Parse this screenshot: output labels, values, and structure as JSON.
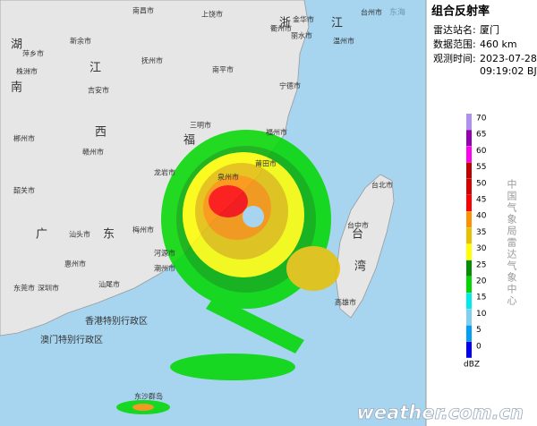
{
  "panel": {
    "title": "组合反射率",
    "station_label": "雷达站名:",
    "station": "厦门",
    "range_label": "数据范围:",
    "range": "460 km",
    "time_label": "观测时间:",
    "date": "2023-07-28",
    "time": "09:19:02 BJT",
    "unit": "dBZ",
    "agency": "中国气象局雷达气象中心"
  },
  "legend": {
    "levels": [
      {
        "value": 70,
        "color": "#ad90f0"
      },
      {
        "value": 65,
        "color": "#9600b4"
      },
      {
        "value": 60,
        "color": "#ff00f0"
      },
      {
        "value": 55,
        "color": "#c00000"
      },
      {
        "value": 50,
        "color": "#d60000"
      },
      {
        "value": 45,
        "color": "#ff0000"
      },
      {
        "value": 40,
        "color": "#ff9000"
      },
      {
        "value": 35,
        "color": "#e7c000"
      },
      {
        "value": 30,
        "color": "#ffff00"
      },
      {
        "value": 25,
        "color": "#019000"
      },
      {
        "value": 20,
        "color": "#00d800"
      },
      {
        "value": 15,
        "color": "#00ecec"
      },
      {
        "value": 10,
        "color": "#7fd0f0"
      },
      {
        "value": 5,
        "color": "#01a0f6"
      },
      {
        "value": 0,
        "color": "#0000f6"
      }
    ]
  },
  "map": {
    "labels": [
      "东海",
      "浙",
      "江",
      "湖",
      "南",
      "江",
      "西",
      "福",
      "广",
      "东",
      "台",
      "湾",
      "南昌市",
      "上饶市",
      "衢州市",
      "金华市",
      "丽水市",
      "温州市",
      "台州市",
      "萍乡市",
      "新余市",
      "株洲市",
      "抚州市",
      "吉安市",
      "南平市",
      "宁德市",
      "郴州市",
      "三明市",
      "福州市",
      "赣州市",
      "莆田市",
      "龙岩市",
      "泉州市",
      "韶关市",
      "梅州市",
      "河源市",
      "潮州市",
      "汕头市",
      "惠州市",
      "汕尾市",
      "东莞市",
      "深圳市",
      "台北市",
      "台中市",
      "高雄市",
      "香港特别行政区",
      "澳门特别行政区",
      "东沙群岛"
    ],
    "watermark": "weather.com.cn"
  }
}
